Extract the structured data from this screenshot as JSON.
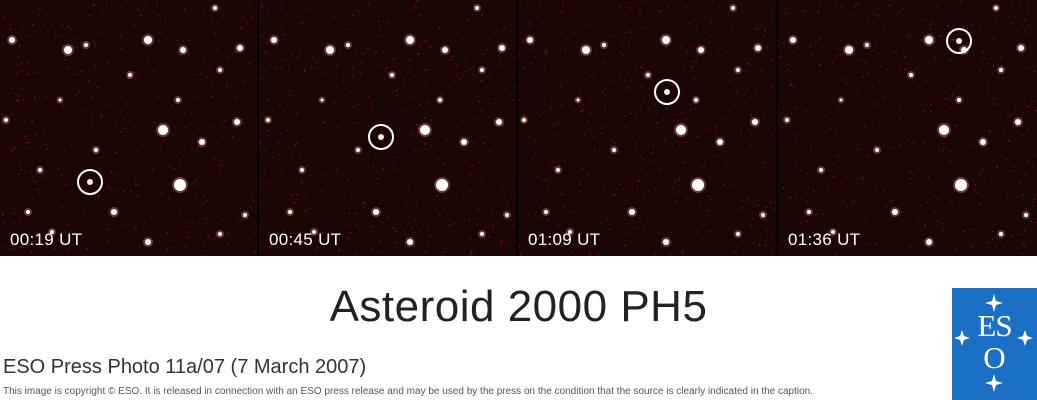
{
  "frames": [
    {
      "time": "00:19 UT"
    },
    {
      "time": "00:45 UT"
    },
    {
      "time": "01:09 UT"
    },
    {
      "time": "01:36 UT"
    }
  ],
  "title": "Asteroid 2000 PH5",
  "photo_id": "ESO Press Photo 11a/07 (7 March 2007)",
  "copyright": "This image is copyright © ESO. It is released in connection with an ESO press release and may be used by the press on the condition that the source is clearly indicated in the caption.",
  "logo": {
    "letters_top": "ES",
    "letter_bottom": "O"
  },
  "colors": {
    "background_noise": "#1a0603",
    "star": "#ffffff",
    "logo_blue": "#1b6fc4"
  }
}
